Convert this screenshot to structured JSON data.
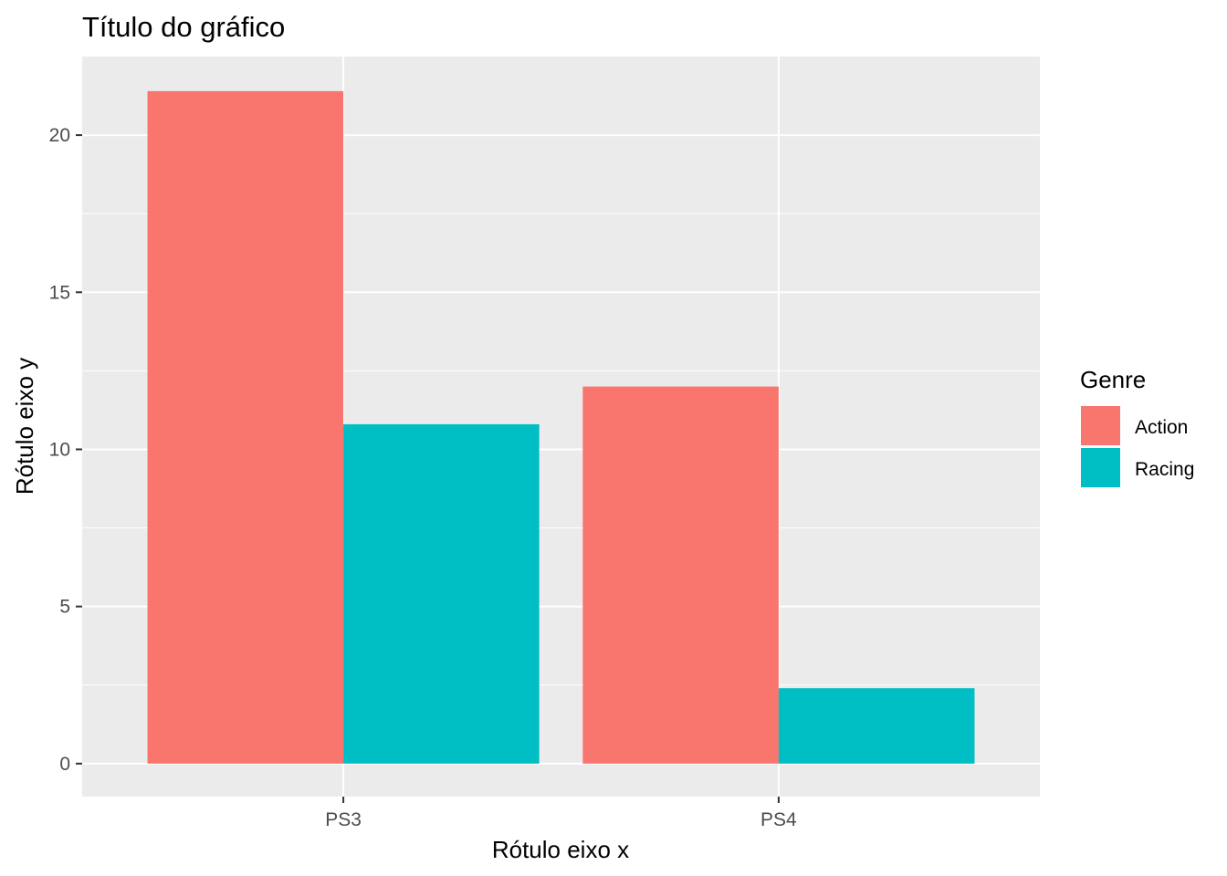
{
  "chart_data": {
    "type": "bar",
    "title": "Título do gráfico",
    "xlabel": "Rótulo eixo x",
    "ylabel": "Rótulo eixo y",
    "categories": [
      "PS3",
      "PS4"
    ],
    "series": [
      {
        "name": "Action",
        "values": [
          21.4,
          12.0
        ],
        "color": "#F8766D"
      },
      {
        "name": "Racing",
        "values": [
          10.8,
          2.4
        ],
        "color": "#00BFC4"
      }
    ],
    "ylim": [
      -1.05,
      22.5
    ],
    "yticks": [
      0,
      5,
      10,
      15,
      20
    ],
    "ytick_labels": [
      "0",
      "5",
      "10",
      "15",
      "20"
    ],
    "legend": {
      "title": "Genre",
      "position": "right"
    },
    "grid": true,
    "panel_background": "#EBEBEB"
  }
}
